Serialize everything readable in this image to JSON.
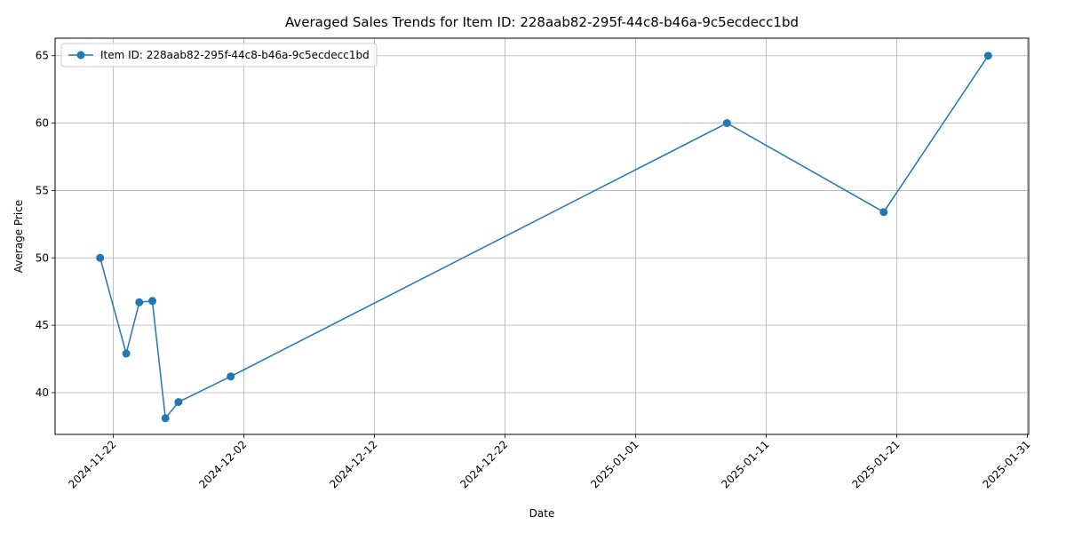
{
  "chart_data": {
    "type": "line",
    "title": "Averaged Sales Trends for Item ID: 228aab82-295f-44c8-b46a-9c5ecdecc1bd",
    "xlabel": "Date",
    "ylabel": "Average Price",
    "x_type": "date",
    "xlim": [
      "2024-11-17",
      "2025-01-31"
    ],
    "ylim": [
      36.9,
      66.3
    ],
    "x_ticks": [
      "2024-11-22",
      "2024-12-02",
      "2024-12-12",
      "2024-12-22",
      "2025-01-01",
      "2025-01-11",
      "2025-01-21",
      "2025-01-31"
    ],
    "y_ticks": [
      40,
      45,
      50,
      55,
      60,
      65
    ],
    "grid": true,
    "legend_position": "top-left",
    "series": [
      {
        "name": "Item ID: 228aab82-295f-44c8-b46a-9c5ecdecc1bd",
        "color": "#1f77b4",
        "marker": "circle",
        "x": [
          "2024-11-21",
          "2024-11-23",
          "2024-11-24",
          "2024-11-25",
          "2024-11-26",
          "2024-11-27",
          "2024-12-01",
          "2025-01-08",
          "2025-01-20",
          "2025-01-28"
        ],
        "y": [
          50.0,
          42.9,
          46.7,
          46.8,
          38.1,
          39.3,
          41.2,
          60.0,
          53.4,
          65.0
        ]
      }
    ]
  }
}
